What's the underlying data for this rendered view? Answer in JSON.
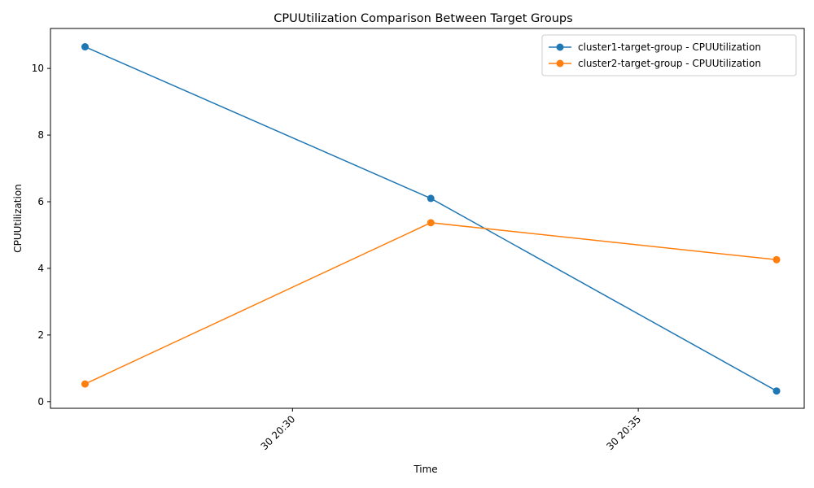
{
  "chart_data": {
    "type": "line",
    "title": "CPUUtilization Comparison Between Target Groups",
    "xlabel": "Time",
    "ylabel": "CPUUtilization",
    "x": [
      "20:27",
      "20:32",
      "20:37"
    ],
    "x_ticks": [
      {
        "value": "20:30",
        "label": "30 20:30"
      },
      {
        "value": "20:35",
        "label": "30 20:35"
      }
    ],
    "xlim": [
      "20:26.5",
      "20:37.4"
    ],
    "y_ticks": [
      0,
      2,
      4,
      6,
      8,
      10
    ],
    "ylim": [
      -0.2,
      11.2
    ],
    "grid": false,
    "legend_position": "top-right",
    "series": [
      {
        "name": "cluster1-target-group - CPUUtilization",
        "color": "#1f77b4",
        "values": [
          10.65,
          6.1,
          0.32
        ]
      },
      {
        "name": "cluster2-target-group - CPUUtilization",
        "color": "#ff7f0e",
        "values": [
          0.53,
          5.37,
          4.26
        ]
      }
    ]
  }
}
